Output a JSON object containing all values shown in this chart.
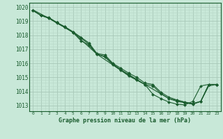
{
  "title": "Graphe pression niveau de la mer (hPa)",
  "background_color": "#c8e8d8",
  "grid_major_color": "#a8c8b8",
  "grid_minor_color": "#b8d8c8",
  "line_color": "#1a5c2e",
  "xlim": [
    -0.5,
    23.5
  ],
  "ylim": [
    1012.6,
    1020.3
  ],
  "yticks": [
    1013,
    1014,
    1015,
    1016,
    1017,
    1018,
    1019,
    1020
  ],
  "xticks": [
    0,
    1,
    2,
    3,
    4,
    5,
    6,
    7,
    8,
    9,
    10,
    11,
    12,
    13,
    14,
    15,
    16,
    17,
    18,
    19,
    20,
    21,
    22,
    23
  ],
  "series": [
    {
      "x": [
        0,
        1,
        2,
        3,
        4,
        5,
        6,
        7,
        8,
        9,
        10,
        11,
        12,
        13,
        14,
        15,
        16,
        17,
        18,
        19,
        20,
        21,
        22,
        23
      ],
      "y": [
        1019.75,
        1019.4,
        1019.2,
        1018.85,
        1018.55,
        1018.2,
        1017.6,
        1017.3,
        1016.65,
        1016.45,
        1015.9,
        1015.5,
        1015.1,
        1014.8,
        1014.5,
        1013.8,
        1013.5,
        1013.25,
        1013.1,
        1013.05,
        1013.3,
        1014.4,
        1014.5,
        1014.5
      ],
      "has_markers": true
    },
    {
      "x": [
        0,
        1,
        2,
        3,
        4,
        5,
        6,
        7,
        8,
        9,
        10,
        11,
        12,
        13,
        14,
        15,
        16,
        17,
        18,
        19,
        20,
        21,
        22,
        23
      ],
      "y": [
        1019.75,
        1019.4,
        1019.2,
        1018.9,
        1018.55,
        1018.2,
        1017.8,
        1017.35,
        1016.65,
        1016.5,
        1015.95,
        1015.55,
        1015.2,
        1014.85,
        1014.5,
        1014.4,
        1013.85,
        1013.5,
        1013.3,
        1013.2,
        1013.1,
        1013.3,
        1014.5,
        1014.5
      ],
      "has_markers": true
    },
    {
      "x": [
        0,
        1,
        2,
        3,
        4,
        5,
        6,
        7,
        8,
        9,
        10,
        11,
        12,
        13,
        14,
        15,
        16,
        17,
        18,
        19,
        20,
        21,
        22,
        23
      ],
      "y": [
        1019.75,
        1019.4,
        1019.25,
        1018.9,
        1018.6,
        1018.25,
        1017.85,
        1017.45,
        1016.7,
        1016.6,
        1016.0,
        1015.65,
        1015.3,
        1015.0,
        1014.6,
        1014.5,
        1013.95,
        1013.6,
        1013.4,
        1013.25,
        1013.15,
        1013.3,
        1014.5,
        1014.5
      ],
      "has_markers": true
    },
    {
      "x": [
        0,
        2,
        5,
        8,
        11,
        14,
        17,
        20,
        21,
        22,
        23
      ],
      "y": [
        1019.8,
        1019.2,
        1018.2,
        1016.65,
        1015.5,
        1014.5,
        1013.5,
        1013.1,
        1013.3,
        1014.4,
        1014.5
      ],
      "has_markers": false
    }
  ]
}
